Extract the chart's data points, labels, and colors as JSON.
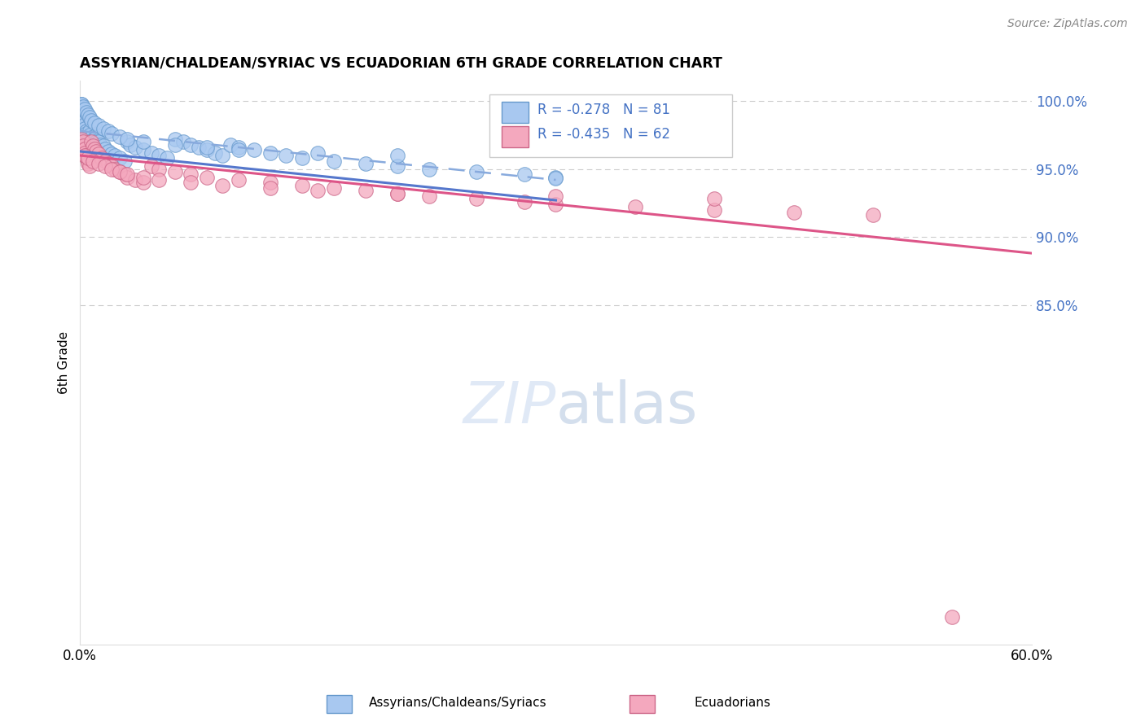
{
  "title": "ASSYRIAN/CHALDEAN/SYRIAC VS ECUADORIAN 6TH GRADE CORRELATION CHART",
  "source": "Source: ZipAtlas.com",
  "ylabel": "6th Grade",
  "legend_label_blue": "Assyrians/Chaldeans/Syriacs",
  "legend_label_pink": "Ecuadorians",
  "r_blue": -0.278,
  "n_blue": 81,
  "r_pink": -0.435,
  "n_pink": 62,
  "color_blue_fill": "#a8c8f0",
  "color_blue_edge": "#6699cc",
  "color_pink_fill": "#f4a8be",
  "color_pink_edge": "#cc6688",
  "color_line_blue": "#5577cc",
  "color_line_pink": "#dd5588",
  "color_line_dashed": "#88aadd",
  "color_ytick": "#4472c4",
  "xlim": [
    0.0,
    0.6
  ],
  "ylim": [
    0.6,
    1.015
  ],
  "ytick_vals": [
    0.85,
    0.9,
    0.95,
    1.0
  ],
  "ytick_labels": [
    "85.0%",
    "90.0%",
    "95.0%",
    "100.0%"
  ],
  "blue_line_x0": 0.0,
  "blue_line_y0": 0.978,
  "blue_line_x1": 0.3,
  "blue_line_y1": 0.942,
  "pink_line_x0": 0.0,
  "pink_line_y0": 0.96,
  "pink_line_x1": 0.6,
  "pink_line_y1": 0.888,
  "dashed_line_x0": 0.0,
  "dashed_line_y0": 0.975,
  "dashed_line_x1": 0.6,
  "dashed_line_y1": 0.898,
  "watermark_text": "ZIPatlas",
  "watermark_color": "#c8d8f0",
  "blue_scatter_x": [
    0.001,
    0.001,
    0.002,
    0.002,
    0.002,
    0.003,
    0.003,
    0.003,
    0.004,
    0.004,
    0.004,
    0.005,
    0.005,
    0.005,
    0.006,
    0.006,
    0.007,
    0.007,
    0.008,
    0.008,
    0.009,
    0.01,
    0.01,
    0.011,
    0.012,
    0.013,
    0.015,
    0.016,
    0.018,
    0.02,
    0.022,
    0.025,
    0.028,
    0.03,
    0.032,
    0.035,
    0.04,
    0.045,
    0.05,
    0.055,
    0.06,
    0.065,
    0.07,
    0.075,
    0.08,
    0.085,
    0.09,
    0.095,
    0.1,
    0.11,
    0.12,
    0.13,
    0.14,
    0.16,
    0.18,
    0.2,
    0.22,
    0.25,
    0.28,
    0.3,
    0.001,
    0.002,
    0.003,
    0.004,
    0.005,
    0.006,
    0.007,
    0.009,
    0.012,
    0.015,
    0.018,
    0.02,
    0.025,
    0.03,
    0.04,
    0.06,
    0.08,
    0.1,
    0.15,
    0.2,
    0.3
  ],
  "blue_scatter_y": [
    0.998,
    0.995,
    0.993,
    0.99,
    0.987,
    0.985,
    0.983,
    0.98,
    0.978,
    0.976,
    0.973,
    0.972,
    0.97,
    0.968,
    0.978,
    0.975,
    0.973,
    0.971,
    0.97,
    0.968,
    0.966,
    0.975,
    0.973,
    0.971,
    0.97,
    0.968,
    0.967,
    0.965,
    0.963,
    0.961,
    0.96,
    0.958,
    0.956,
    0.97,
    0.968,
    0.966,
    0.964,
    0.962,
    0.96,
    0.958,
    0.972,
    0.97,
    0.968,
    0.966,
    0.964,
    0.962,
    0.96,
    0.968,
    0.966,
    0.964,
    0.962,
    0.96,
    0.958,
    0.956,
    0.954,
    0.952,
    0.95,
    0.948,
    0.946,
    0.944,
    0.998,
    0.996,
    0.994,
    0.992,
    0.99,
    0.988,
    0.986,
    0.984,
    0.982,
    0.98,
    0.978,
    0.976,
    0.974,
    0.972,
    0.97,
    0.968,
    0.966,
    0.964,
    0.962,
    0.96,
    0.943
  ],
  "pink_scatter_x": [
    0.001,
    0.002,
    0.002,
    0.003,
    0.003,
    0.004,
    0.004,
    0.005,
    0.005,
    0.006,
    0.007,
    0.008,
    0.009,
    0.01,
    0.012,
    0.014,
    0.016,
    0.018,
    0.02,
    0.022,
    0.025,
    0.028,
    0.03,
    0.035,
    0.04,
    0.045,
    0.05,
    0.06,
    0.07,
    0.08,
    0.1,
    0.12,
    0.14,
    0.16,
    0.18,
    0.2,
    0.22,
    0.25,
    0.28,
    0.3,
    0.35,
    0.4,
    0.45,
    0.5,
    0.003,
    0.005,
    0.008,
    0.012,
    0.016,
    0.02,
    0.025,
    0.03,
    0.04,
    0.05,
    0.07,
    0.09,
    0.12,
    0.15,
    0.2,
    0.3,
    0.4,
    0.55
  ],
  "pink_scatter_y": [
    0.972,
    0.97,
    0.967,
    0.965,
    0.962,
    0.96,
    0.958,
    0.956,
    0.954,
    0.952,
    0.97,
    0.967,
    0.965,
    0.963,
    0.961,
    0.958,
    0.956,
    0.954,
    0.952,
    0.95,
    0.948,
    0.946,
    0.944,
    0.942,
    0.94,
    0.952,
    0.95,
    0.948,
    0.946,
    0.944,
    0.942,
    0.94,
    0.938,
    0.936,
    0.934,
    0.932,
    0.93,
    0.928,
    0.926,
    0.924,
    0.922,
    0.92,
    0.918,
    0.916,
    0.96,
    0.958,
    0.956,
    0.954,
    0.952,
    0.95,
    0.948,
    0.946,
    0.944,
    0.942,
    0.94,
    0.938,
    0.936,
    0.934,
    0.932,
    0.93,
    0.928,
    0.62
  ]
}
